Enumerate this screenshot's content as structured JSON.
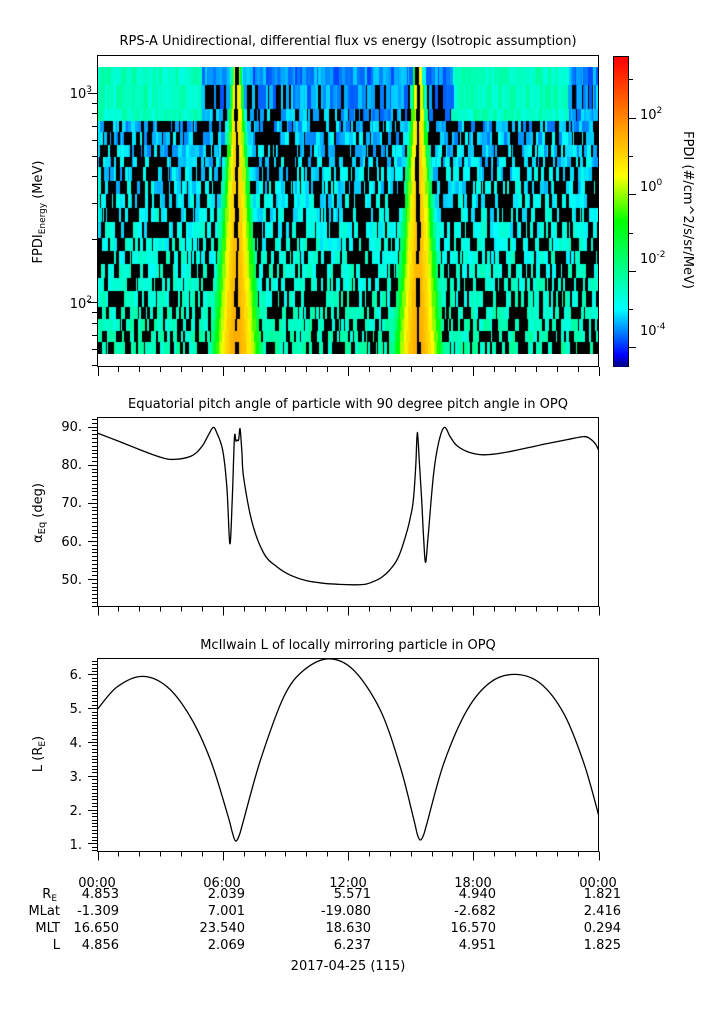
{
  "chart_data": [
    {
      "type": "heatmap",
      "title": "RPS-A Unidirectional, differential flux vs energy (Isotropic assumption)",
      "ylabel_main": "FPDI",
      "ylabel_sub": "Energy",
      "ylabel_unit": "(MeV)",
      "yscale": "log",
      "ylim": [
        49.4,
        1513
      ],
      "xlim_hours": [
        0,
        24
      ],
      "y_ticks": [
        {
          "base": "10",
          "exp": "3",
          "value": 1000
        },
        {
          "base": "10",
          "exp": "2",
          "value": 100
        }
      ],
      "energy_bin_edges_mev": [
        1340,
        1096,
        841,
        738,
        652,
        571,
        498,
        446,
        383,
        330,
        284,
        244,
        205,
        177,
        154,
        132,
        114,
        96,
        84,
        73,
        65,
        57
      ],
      "flux_model": {
        "perigee_hours": [
          6.66,
          15.38
        ],
        "peak_log_flux": 1.0,
        "background_log_flux_low_energy": -2.3,
        "background_log_flux_high_energy": -3.6,
        "fill_fraction": 0.35
      },
      "colorbar": {
        "label": "FPDI (#/cm^2/s/sr/MeV)",
        "scale": "log",
        "range_log10": [
          -4.5,
          3.6
        ],
        "ticks": [
          {
            "base": "10",
            "exp": "2",
            "value": 2
          },
          {
            "base": "10",
            "exp": "0",
            "value": 0
          },
          {
            "base": "10",
            "exp": "-2",
            "value": -2
          },
          {
            "base": "10",
            "exp": "-4",
            "value": -4
          }
        ],
        "colors": [
          [
            "-4.5",
            "#00007f"
          ],
          [
            "-4.2",
            "#0000ff"
          ],
          [
            "-3.0",
            "#00ffff"
          ],
          [
            "-0.7",
            "#00ff00"
          ],
          [
            "0.5",
            "#ffff00"
          ],
          [
            "1.8",
            "#ff9900"
          ],
          [
            "3.6",
            "#ff0000"
          ]
        ]
      }
    },
    {
      "type": "line",
      "title": "Equatorial pitch angle of particle with 90 degree pitch angle in OPQ",
      "ylabel_main": "α",
      "ylabel_sub": "Eq",
      "ylabel_unit": "(deg)",
      "ylim": [
        42.8,
        92.4
      ],
      "y_ticks": [
        "90.",
        "80.",
        "70.",
        "60.",
        "50."
      ],
      "y_tick_values": [
        90,
        80,
        70,
        60,
        50
      ],
      "x_hours": [
        0,
        1,
        2,
        3,
        3.66,
        4.5,
        5.0,
        5.33,
        5.55,
        5.73,
        6.0,
        6.2,
        6.34,
        6.45,
        6.56,
        6.63,
        6.69,
        6.76,
        6.83,
        6.92,
        7.0,
        7.4,
        7.97,
        8.6,
        9.25,
        10.0,
        10.84,
        11.6,
        12.28,
        12.8,
        13.2,
        13.6,
        14.0,
        14.4,
        14.8,
        15.0,
        15.13,
        15.25,
        15.32,
        15.42,
        15.53,
        15.63,
        15.72,
        15.85,
        16.1,
        16.35,
        16.62,
        16.9,
        17.22,
        17.8,
        18.5,
        19.4,
        20.4,
        21.5,
        22.5,
        23.3,
        23.6,
        23.85,
        24
      ],
      "values": [
        88.3,
        86.2,
        84.0,
        82.0,
        81.4,
        82.3,
        84.8,
        88.0,
        89.8,
        88.2,
        83.7,
        74.0,
        59.3,
        70.0,
        87.0,
        86.2,
        86.5,
        86.5,
        89.4,
        83.0,
        76.7,
        65.0,
        56.7,
        53.2,
        51.0,
        49.6,
        48.9,
        48.6,
        48.5,
        48.6,
        49.3,
        50.4,
        52.4,
        55.6,
        62.0,
        66.5,
        70.7,
        80.0,
        88.5,
        80.5,
        70.7,
        60.0,
        54.4,
        62.0,
        77.6,
        86.0,
        89.8,
        87.3,
        85.0,
        83.3,
        82.6,
        83.1,
        84.2,
        85.5,
        86.6,
        87.4,
        86.8,
        85.5,
        83.9
      ]
    },
    {
      "type": "line",
      "title": "McIlwain L of locally mirroring particle in OPQ",
      "ylabel_main": "L (R",
      "ylabel_sub": "E",
      "ylabel_unit": ")",
      "ylim": [
        0.76,
        6.47
      ],
      "y_ticks": [
        "6.",
        "5.",
        "4.",
        "3.",
        "2.",
        "1."
      ],
      "y_tick_values": [
        6,
        5,
        4,
        3,
        2,
        1
      ],
      "x_hours": [
        0,
        0.94,
        2.14,
        3.34,
        4.45,
        5.41,
        6.21,
        6.45,
        6.61,
        6.8,
        7.01,
        7.81,
        8.92,
        9.88,
        11.08,
        12.28,
        13.55,
        14.5,
        15.15,
        15.33,
        15.47,
        15.62,
        15.79,
        16.59,
        17.7,
        18.83,
        20.02,
        21.22,
        22.34,
        23.3,
        24
      ],
      "values": [
        4.97,
        5.63,
        5.94,
        5.63,
        4.74,
        3.47,
        1.9,
        1.35,
        1.07,
        1.25,
        1.71,
        3.47,
        5.33,
        6.12,
        6.46,
        6.12,
        4.94,
        3.27,
        1.71,
        1.25,
        1.1,
        1.25,
        1.61,
        3.37,
        4.94,
        5.77,
        6.0,
        5.73,
        4.84,
        3.37,
        1.85
      ]
    }
  ],
  "x_axis": {
    "tick_labels": [
      "00:00",
      "06:00",
      "12:00",
      "18:00",
      "00:00"
    ],
    "date_label": "2017-04-25 (115)"
  },
  "ephemeris": {
    "rows": [
      {
        "label": "R",
        "label_sub": "E",
        "values": [
          "4.853",
          "2.039",
          "5.571",
          "4.940",
          "1.821"
        ]
      },
      {
        "label": "MLat",
        "label_sub": "",
        "values": [
          "-1.309",
          "7.001",
          "-19.080",
          "-2.682",
          "2.416"
        ]
      },
      {
        "label": "MLT",
        "label_sub": "",
        "values": [
          "16.650",
          "23.540",
          "18.630",
          "16.570",
          "0.294"
        ]
      },
      {
        "label": "L",
        "label_sub": "",
        "values": [
          "4.856",
          "2.069",
          "6.237",
          "4.951",
          "1.825"
        ]
      }
    ]
  }
}
